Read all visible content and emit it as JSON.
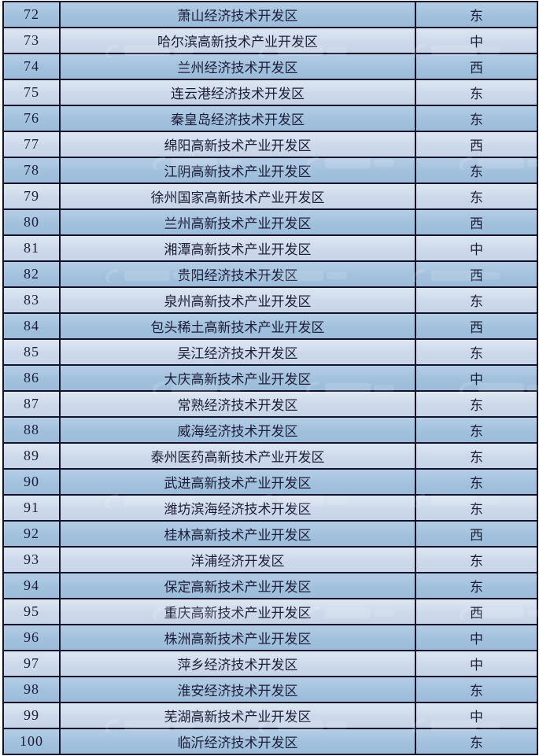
{
  "colors": {
    "row_dark": "#a2c1dd",
    "row_light": "#cdd9eb",
    "border": "#12122a",
    "text": "#1e1e38",
    "page_background": "#ffffff"
  },
  "watermark": {
    "icon": "swirl-logo-watermark"
  },
  "table": {
    "rows": [
      {
        "rank": "72",
        "name": "萧山经济技术开发区",
        "region": "东"
      },
      {
        "rank": "73",
        "name": "哈尔滨高新技术产业开发区",
        "region": "中"
      },
      {
        "rank": "74",
        "name": "兰州经济技术开发区",
        "region": "西"
      },
      {
        "rank": "75",
        "name": "连云港经济技术开发区",
        "region": "东"
      },
      {
        "rank": "76",
        "name": "秦皇岛经济技术开发区",
        "region": "东"
      },
      {
        "rank": "77",
        "name": "绵阳高新技术产业开发区",
        "region": "西"
      },
      {
        "rank": "78",
        "name": "江阴高新技术产业开发区",
        "region": "东"
      },
      {
        "rank": "79",
        "name": "徐州国家高新技术产业开发区",
        "region": "东"
      },
      {
        "rank": "80",
        "name": "兰州高新技术产业开发区",
        "region": "西"
      },
      {
        "rank": "81",
        "name": "湘潭高新技术产业开发区",
        "region": "中"
      },
      {
        "rank": "82",
        "name": "贵阳经济技术开发区",
        "region": "西"
      },
      {
        "rank": "83",
        "name": "泉州高新技术产业开发区",
        "region": "东"
      },
      {
        "rank": "84",
        "name": "包头稀土高新技术产业开发区",
        "region": "西"
      },
      {
        "rank": "85",
        "name": "吴江经济技术开发区",
        "region": "东"
      },
      {
        "rank": "86",
        "name": "大庆高新技术产业开发区",
        "region": "中"
      },
      {
        "rank": "87",
        "name": "常熟经济技术开发区",
        "region": "东"
      },
      {
        "rank": "88",
        "name": "威海经济技术开发区",
        "region": "东"
      },
      {
        "rank": "89",
        "name": "泰州医药高新技术产业开发区",
        "region": "东"
      },
      {
        "rank": "90",
        "name": "武进高新技术产业开发区",
        "region": "东"
      },
      {
        "rank": "91",
        "name": "潍坊滨海经济技术开发区",
        "region": "东"
      },
      {
        "rank": "92",
        "name": "桂林高新技术产业开发区",
        "region": "西"
      },
      {
        "rank": "93",
        "name": "洋浦经济开发区",
        "region": "东"
      },
      {
        "rank": "94",
        "name": "保定高新技术产业开发区",
        "region": "东"
      },
      {
        "rank": "95",
        "name": "重庆高新技术产业开发区",
        "region": "西"
      },
      {
        "rank": "96",
        "name": "株洲高新技术产业开发区",
        "region": "中"
      },
      {
        "rank": "97",
        "name": "萍乡经济技术开发区",
        "region": "中"
      },
      {
        "rank": "98",
        "name": "淮安经济技术开发区",
        "region": "东"
      },
      {
        "rank": "99",
        "name": "芜湖高新技术产业开发区",
        "region": "中"
      },
      {
        "rank": "100",
        "name": "临沂经济技术开发区",
        "region": "东"
      }
    ]
  }
}
